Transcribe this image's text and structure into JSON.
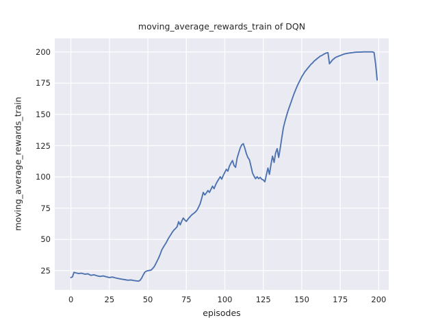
{
  "figure": {
    "title": "moving_average_rewards_train of DQN",
    "xlabel": "episodes",
    "ylabel": "moving_average_rewards_train",
    "colors": {
      "line": "#4c72b0",
      "axes_background": "#eaeaf2",
      "grid": "#ffffff",
      "text": "#262626",
      "figure_background": "#ffffff"
    }
  },
  "chart_data": {
    "type": "line",
    "title": "moving_average_rewards_train of DQN",
    "xlabel": "episodes",
    "ylabel": "moving_average_rewards_train",
    "grid": true,
    "legend": null,
    "x_ticks": [
      0,
      25,
      50,
      75,
      100,
      125,
      150,
      175,
      200
    ],
    "y_ticks": [
      25,
      50,
      75,
      100,
      125,
      150,
      175,
      200
    ],
    "xlim": [
      -10.5,
      206.5
    ],
    "ylim": [
      9.6,
      210.8
    ],
    "series": [
      {
        "name": "moving_average_rewards_train",
        "color": "#4c72b0",
        "points": [
          [
            0,
            19.5
          ],
          [
            1,
            20
          ],
          [
            2,
            23.7
          ],
          [
            3,
            23.3
          ],
          [
            5,
            22.7
          ],
          [
            7,
            23
          ],
          [
            9,
            22.2
          ],
          [
            11,
            22.5
          ],
          [
            13,
            21.3
          ],
          [
            15,
            21.7
          ],
          [
            17,
            20.9
          ],
          [
            19,
            20.4
          ],
          [
            21,
            20.8
          ],
          [
            23,
            20.1
          ],
          [
            25,
            19.5
          ],
          [
            27,
            19.9
          ],
          [
            29,
            19.2
          ],
          [
            31,
            18.7
          ],
          [
            33,
            18.2
          ],
          [
            35,
            17.8
          ],
          [
            37,
            17.4
          ],
          [
            39,
            17.6
          ],
          [
            41,
            17.1
          ],
          [
            43,
            16.8
          ],
          [
            44,
            16.6
          ],
          [
            45,
            17.4
          ],
          [
            46,
            19.2
          ],
          [
            47,
            21.6
          ],
          [
            48,
            23.8
          ],
          [
            49,
            24.6
          ],
          [
            50,
            25
          ],
          [
            51,
            25.2
          ],
          [
            52,
            25.4
          ],
          [
            53,
            26.6
          ],
          [
            54,
            28
          ],
          [
            55,
            30.2
          ],
          [
            56,
            32.6
          ],
          [
            57,
            35.2
          ],
          [
            58,
            38
          ],
          [
            59,
            41.5
          ],
          [
            60,
            43.6
          ],
          [
            61,
            45.6
          ],
          [
            62,
            47.6
          ],
          [
            63,
            50
          ],
          [
            64,
            52.1
          ],
          [
            65,
            54
          ],
          [
            66,
            56
          ],
          [
            67,
            57.6
          ],
          [
            68,
            58.7
          ],
          [
            69,
            60.2
          ],
          [
            70,
            64.2
          ],
          [
            71,
            61.7
          ],
          [
            72,
            64.6
          ],
          [
            73,
            67.1
          ],
          [
            74,
            65.6
          ],
          [
            75,
            64.4
          ],
          [
            76,
            66.1
          ],
          [
            77,
            67.6
          ],
          [
            78,
            69
          ],
          [
            79,
            70.1
          ],
          [
            80,
            71
          ],
          [
            81,
            72.1
          ],
          [
            82,
            73.6
          ],
          [
            83,
            76
          ],
          [
            84,
            78.6
          ],
          [
            85,
            83
          ],
          [
            86,
            87.6
          ],
          [
            87,
            85.6
          ],
          [
            88,
            87.1
          ],
          [
            89,
            89.1
          ],
          [
            90,
            87.6
          ],
          [
            91,
            90.1
          ],
          [
            92,
            92.6
          ],
          [
            93,
            90.6
          ],
          [
            94,
            93.6
          ],
          [
            95,
            96.1
          ],
          [
            96,
            98.1
          ],
          [
            97,
            100.1
          ],
          [
            98,
            98.2
          ],
          [
            99,
            101.1
          ],
          [
            100,
            103.6
          ],
          [
            101,
            106.1
          ],
          [
            102,
            104.6
          ],
          [
            103,
            108.6
          ],
          [
            104,
            111.1
          ],
          [
            105,
            113.1
          ],
          [
            106,
            109.1
          ],
          [
            107,
            107.6
          ],
          [
            108,
            115.1
          ],
          [
            109,
            119.1
          ],
          [
            110,
            123.1
          ],
          [
            111,
            125.6
          ],
          [
            112,
            126.6
          ],
          [
            113,
            123.1
          ],
          [
            114,
            118.6
          ],
          [
            115,
            115.6
          ],
          [
            116,
            113.6
          ],
          [
            117,
            108.6
          ],
          [
            118,
            103.1
          ],
          [
            119,
            100.6
          ],
          [
            120,
            98.6
          ],
          [
            121,
            100.1
          ],
          [
            122,
            98.6
          ],
          [
            123,
            99.6
          ],
          [
            124,
            98.1
          ],
          [
            125,
            97.6
          ],
          [
            126,
            96.1
          ],
          [
            127,
            101.6
          ],
          [
            128,
            107.1
          ],
          [
            129,
            102.1
          ],
          [
            130,
            110.1
          ],
          [
            131,
            116.6
          ],
          [
            132,
            111.6
          ],
          [
            133,
            119.1
          ],
          [
            134,
            122.6
          ],
          [
            135,
            115.6
          ],
          [
            136,
            123.1
          ],
          [
            137,
            131.1
          ],
          [
            138,
            139.1
          ],
          [
            139,
            144.1
          ],
          [
            140,
            148.6
          ],
          [
            141,
            152.6
          ],
          [
            142,
            156.1
          ],
          [
            143,
            159.6
          ],
          [
            144,
            163.1
          ],
          [
            145,
            166.6
          ],
          [
            146,
            169.6
          ],
          [
            147,
            172.6
          ],
          [
            148,
            175.1
          ],
          [
            149,
            177.6
          ],
          [
            150,
            180.1
          ],
          [
            151,
            182.1
          ],
          [
            152,
            184.1
          ],
          [
            153,
            185.6
          ],
          [
            154,
            187.1
          ],
          [
            155,
            188.6
          ],
          [
            156,
            190.1
          ],
          [
            157,
            191.1
          ],
          [
            158,
            192.6
          ],
          [
            159,
            193.6
          ],
          [
            160,
            194.6
          ],
          [
            161,
            195.6
          ],
          [
            162,
            196.6
          ],
          [
            163,
            197.1
          ],
          [
            164,
            197.9
          ],
          [
            165,
            198.6
          ],
          [
            166,
            199.1
          ],
          [
            167,
            199.4
          ],
          [
            168,
            190.5
          ],
          [
            169,
            192.1
          ],
          [
            170,
            193.6
          ],
          [
            171,
            194.6
          ],
          [
            172,
            195.6
          ],
          [
            173,
            196.1
          ],
          [
            174,
            196.6
          ],
          [
            175,
            197.1
          ],
          [
            176,
            197.6
          ],
          [
            177,
            198.1
          ],
          [
            178,
            198.4
          ],
          [
            179,
            198.7
          ],
          [
            180,
            198.9
          ],
          [
            181,
            199.1
          ],
          [
            182,
            199.3
          ],
          [
            183,
            199.4
          ],
          [
            184,
            199.6
          ],
          [
            185,
            199.7
          ],
          [
            186,
            199.8
          ],
          [
            187,
            199.8
          ],
          [
            188,
            199.9
          ],
          [
            189,
            199.9
          ],
          [
            190,
            200
          ],
          [
            191,
            200
          ],
          [
            192,
            200
          ],
          [
            193,
            200
          ],
          [
            194,
            200
          ],
          [
            195,
            200
          ],
          [
            196,
            200
          ],
          [
            197,
            199.5
          ],
          [
            198,
            190
          ],
          [
            199,
            177.5
          ]
        ]
      }
    ]
  }
}
